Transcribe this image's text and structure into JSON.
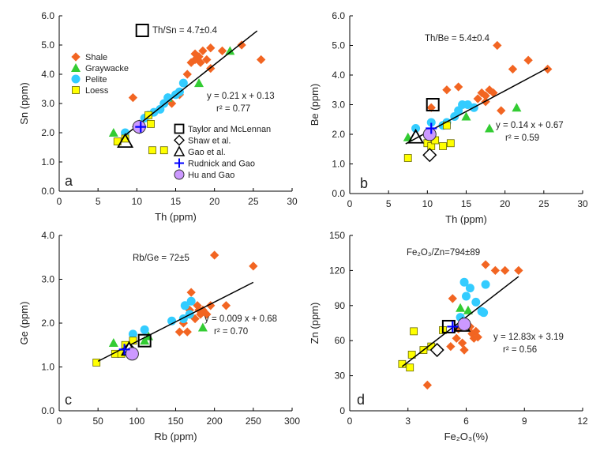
{
  "colors": {
    "shale": "#f26522",
    "graywacke": "#33cc33",
    "pelite": "#33ccff",
    "loess": "#ffff00",
    "rudnick": "#0000ff",
    "hu": "#cc99ff",
    "trend": "#000000"
  },
  "legend_series": {
    "items": [
      {
        "key": "shale",
        "label": "Shale"
      },
      {
        "key": "graywacke",
        "label": "Graywacke"
      },
      {
        "key": "pelite",
        "label": "Pelite"
      },
      {
        "key": "loess",
        "label": "Loess"
      }
    ]
  },
  "legend_estimates": {
    "items": [
      {
        "key": "taylor",
        "label": "Taylor and McLennan"
      },
      {
        "key": "shaw",
        "label": "Shaw et al."
      },
      {
        "key": "gao",
        "label": "Gao et al."
      },
      {
        "key": "rudnick",
        "label": "Rudnick and Gao"
      },
      {
        "key": "hu",
        "label": "Hu and Gao"
      }
    ]
  },
  "chart_data": [
    {
      "id": "a",
      "type": "scatter",
      "panel_letter": "a",
      "ratio_label": "Th/Sn = 4.7±0.4",
      "eq_line1": "y = 0.21 x + 0.13",
      "eq_line2": "r² = 0.77",
      "xlabel": "Th (ppm)",
      "ylabel": "Sn (ppm)",
      "xlim": [
        0,
        30
      ],
      "ylim": [
        0,
        6
      ],
      "xticks": [
        "0",
        "5",
        "10",
        "15",
        "20",
        "25",
        "30"
      ],
      "yticks": [
        "0.0",
        "1.0",
        "2.0",
        "3.0",
        "4.0",
        "5.0",
        "6.0"
      ],
      "trend": {
        "slope": 0.21,
        "intercept": 0.13,
        "x0": 8.5,
        "x1": 25.5
      },
      "series": [
        {
          "name": "Shale",
          "points": [
            [
              9.5,
              3.2
            ],
            [
              14.5,
              3.0
            ],
            [
              15.5,
              3.3
            ],
            [
              16.5,
              4.0
            ],
            [
              17,
              4.4
            ],
            [
              17.5,
              4.5
            ],
            [
              17.5,
              4.7
            ],
            [
              18,
              4.6
            ],
            [
              18.2,
              4.4
            ],
            [
              18.5,
              4.8
            ],
            [
              19,
              4.5
            ],
            [
              19.5,
              4.2
            ],
            [
              19.5,
              4.9
            ],
            [
              21,
              4.8
            ],
            [
              23.5,
              5.0
            ],
            [
              26,
              4.5
            ]
          ]
        },
        {
          "name": "Graywacke",
          "points": [
            [
              7,
              2.0
            ],
            [
              14,
              3.2
            ],
            [
              18,
              3.7
            ],
            [
              22,
              4.8
            ]
          ]
        },
        {
          "name": "Pelite",
          "points": [
            [
              8.5,
              2.0
            ],
            [
              11,
              2.5
            ],
            [
              11.5,
              2.6
            ],
            [
              12.2,
              2.7
            ],
            [
              13,
              2.8
            ],
            [
              13.5,
              3.0
            ],
            [
              14,
              3.2
            ],
            [
              15,
              3.3
            ],
            [
              15.5,
              3.4
            ],
            [
              16,
              3.7
            ]
          ]
        },
        {
          "name": "Loess",
          "points": [
            [
              7.5,
              1.7
            ],
            [
              8.5,
              1.8
            ],
            [
              11.5,
              2.6
            ],
            [
              11.8,
              2.3
            ],
            [
              12,
              1.4
            ],
            [
              13.5,
              1.4
            ]
          ]
        }
      ],
      "estimates": {
        "taylor": [
          10.7,
          5.5
        ],
        "shaw": [
          10.3,
          2.2
        ],
        "gao": [
          8.5,
          1.7
        ],
        "rudnick": [
          10.5,
          2.2
        ],
        "hu": [
          10.3,
          2.2
        ]
      }
    },
    {
      "id": "b",
      "type": "scatter",
      "panel_letter": "b",
      "ratio_label": "Th/Be = 5.4±0.4",
      "eq_line1": "y = 0.14 x + 0.67",
      "eq_line2": "r² = 0.59",
      "xlabel": "Th (ppm)",
      "ylabel": "Be (ppm)",
      "xlim": [
        0,
        30
      ],
      "ylim": [
        0,
        6
      ],
      "xticks": [
        "0",
        "5",
        "10",
        "15",
        "20",
        "25",
        "30"
      ],
      "yticks": [
        "0.0",
        "1.0",
        "2.0",
        "3.0",
        "4.0",
        "5.0",
        "6.0"
      ],
      "trend": {
        "slope": 0.14,
        "intercept": 0.67,
        "x0": 7.2,
        "x1": 25.5
      },
      "series": [
        {
          "name": "Shale",
          "points": [
            [
              10.5,
              2.9
            ],
            [
              12.5,
              3.5
            ],
            [
              14,
              3.6
            ],
            [
              16.5,
              3.2
            ],
            [
              17,
              3.4
            ],
            [
              17.5,
              3.3
            ],
            [
              17.5,
              3.1
            ],
            [
              18,
              3.5
            ],
            [
              18.5,
              3.4
            ],
            [
              19,
              5.0
            ],
            [
              19.5,
              2.8
            ],
            [
              21,
              4.2
            ],
            [
              23,
              4.5
            ],
            [
              25.5,
              4.2
            ]
          ]
        },
        {
          "name": "Graywacke",
          "points": [
            [
              7.5,
              1.9
            ],
            [
              15,
              2.6
            ],
            [
              18,
              2.2
            ],
            [
              21.5,
              2.9
            ]
          ]
        },
        {
          "name": "Pelite",
          "points": [
            [
              8.5,
              2.2
            ],
            [
              10.5,
              2.4
            ],
            [
              12,
              2.3
            ],
            [
              12.5,
              2.4
            ],
            [
              13.5,
              2.6
            ],
            [
              14,
              2.8
            ],
            [
              14.5,
              3.0
            ],
            [
              15.2,
              3.0
            ],
            [
              16,
              2.9
            ]
          ]
        },
        {
          "name": "Loess",
          "points": [
            [
              7.5,
              1.2
            ],
            [
              10,
              1.7
            ],
            [
              10.5,
              1.6
            ],
            [
              11,
              1.8
            ],
            [
              12,
              1.6
            ],
            [
              12.5,
              2.3
            ],
            [
              13,
              1.7
            ]
          ]
        }
      ],
      "estimates": {
        "taylor": [
          10.7,
          3.0
        ],
        "shaw": [
          10.3,
          1.3
        ],
        "gao": [
          8.5,
          1.9
        ],
        "rudnick": [
          10.5,
          2.2
        ],
        "hu": [
          10.3,
          2.0
        ]
      }
    },
    {
      "id": "c",
      "type": "scatter",
      "panel_letter": "c",
      "ratio_label": "Rb/Ge = 72±5",
      "eq_line1": "y = 0.009 x + 0.68",
      "eq_line2": "r² = 0.70",
      "xlabel": "Rb (ppm)",
      "ylabel": "Ge (ppm)",
      "xlim": [
        0,
        300
      ],
      "ylim": [
        0,
        4
      ],
      "xticks": [
        "0",
        "50",
        "100",
        "150",
        "200",
        "250",
        "300"
      ],
      "yticks": [
        "0.0",
        "1.0",
        "2.0",
        "3.0",
        "4.0"
      ],
      "trend": {
        "slope": 0.009,
        "intercept": 0.68,
        "x0": 50,
        "x1": 250
      },
      "series": [
        {
          "name": "Shale",
          "points": [
            [
              155,
              1.8
            ],
            [
              160,
              2.0
            ],
            [
              165,
              1.8
            ],
            [
              168,
              2.3
            ],
            [
              170,
              2.7
            ],
            [
              175,
              2.1
            ],
            [
              178,
              2.4
            ],
            [
              180,
              2.3
            ],
            [
              182,
              2.2
            ],
            [
              185,
              2.3
            ],
            [
              190,
              2.2
            ],
            [
              195,
              2.4
            ],
            [
              200,
              3.55
            ],
            [
              215,
              2.4
            ],
            [
              250,
              3.3
            ]
          ]
        },
        {
          "name": "Graywacke",
          "points": [
            [
              70,
              1.55
            ],
            [
              110,
              1.6
            ],
            [
              115,
              1.7
            ],
            [
              185,
              1.9
            ]
          ]
        },
        {
          "name": "Pelite",
          "points": [
            [
              95,
              1.75
            ],
            [
              110,
              1.85
            ],
            [
              145,
              2.05
            ],
            [
              160,
              2.1
            ],
            [
              162,
              2.4
            ],
            [
              168,
              2.2
            ],
            [
              170,
              2.5
            ]
          ]
        },
        {
          "name": "Loess",
          "points": [
            [
              48,
              1.1
            ],
            [
              72,
              1.3
            ],
            [
              80,
              1.3
            ],
            [
              85,
              1.5
            ],
            [
              95,
              1.6
            ]
          ]
        }
      ],
      "estimates": {
        "taylor": [
          110,
          1.6
        ],
        "shaw": [
          90,
          1.4
        ],
        "gao": [
          90,
          1.4
        ],
        "rudnick": [
          84,
          1.4
        ],
        "hu": [
          94,
          1.3
        ]
      }
    },
    {
      "id": "d",
      "type": "scatter",
      "panel_letter": "d",
      "ratio_label": "Fe₂O₃/Zn=794±89",
      "eq_line1": "y = 12.83x + 3.19",
      "eq_line2": "r² = 0.56",
      "xlabel": "Fe₂O₃(%)",
      "ylabel": "Zn (ppm)",
      "xlim": [
        0,
        12
      ],
      "ylim": [
        0,
        150
      ],
      "xticks": [
        "0",
        "3",
        "6",
        "9",
        "12"
      ],
      "yticks": [
        "0",
        "30",
        "60",
        "90",
        "120",
        "150"
      ],
      "trend": {
        "slope": 12.83,
        "intercept": 3.19,
        "x0": 2.7,
        "x1": 8.7
      },
      "series": [
        {
          "name": "Shale",
          "points": [
            [
              4,
              22
            ],
            [
              5.2,
              55
            ],
            [
              5.3,
              96
            ],
            [
              5.5,
              62
            ],
            [
              5.6,
              70
            ],
            [
              5.7,
              80
            ],
            [
              5.8,
              58
            ],
            [
              5.9,
              52
            ],
            [
              6,
              75
            ],
            [
              6.2,
              72
            ],
            [
              6.3,
              66
            ],
            [
              6.4,
              62
            ],
            [
              6.5,
              68
            ],
            [
              6.6,
              63
            ],
            [
              7,
              125
            ],
            [
              7.5,
              120
            ],
            [
              8,
              120
            ],
            [
              8.7,
              120
            ]
          ]
        },
        {
          "name": "Graywacke",
          "points": [
            [
              5.7,
              88
            ],
            [
              6.1,
              86
            ]
          ]
        },
        {
          "name": "Pelite",
          "points": [
            [
              5.7,
              80
            ],
            [
              5.9,
              110
            ],
            [
              6,
              98
            ],
            [
              6.2,
              105
            ],
            [
              6.5,
              93
            ],
            [
              6.8,
              85
            ],
            [
              6.9,
              84
            ],
            [
              7,
              108
            ]
          ]
        },
        {
          "name": "Loess",
          "points": [
            [
              2.7,
              40
            ],
            [
              3.1,
              37
            ],
            [
              3.2,
              48
            ],
            [
              3.3,
              68
            ],
            [
              3.8,
              52
            ],
            [
              4.2,
              55
            ],
            [
              4.8,
              69
            ]
          ]
        }
      ],
      "estimates": {
        "taylor": [
          5.1,
          72
        ],
        "shaw": [
          4.5,
          52
        ],
        "gao": [
          5.8,
          73
        ],
        "rudnick": [
          5.3,
          72
        ],
        "hu": [
          5.9,
          74
        ]
      }
    }
  ]
}
